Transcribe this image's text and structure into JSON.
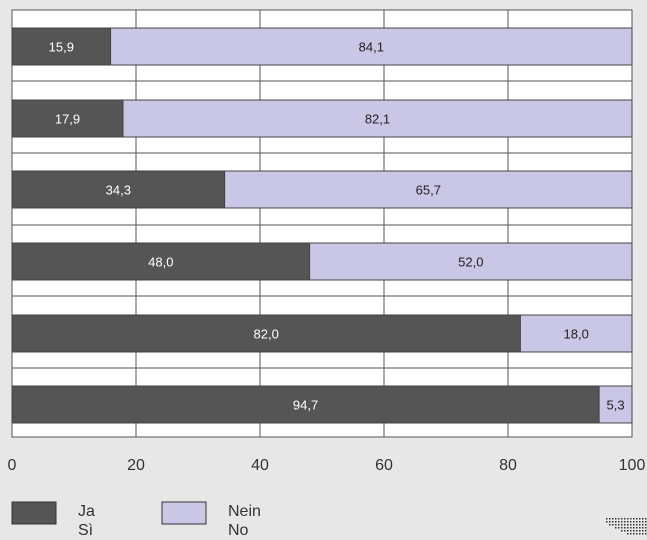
{
  "chart_data": {
    "type": "bar",
    "orientation": "horizontal",
    "stacked": true,
    "categories": [
      "",
      "",
      "",
      "",
      "",
      ""
    ],
    "series": [
      {
        "name": "Ja / Sì",
        "values": [
          15.9,
          17.9,
          34.3,
          48.0,
          82.0,
          94.7
        ],
        "labels": [
          "15,9",
          "17,9",
          "34,3",
          "48,0",
          "82,0",
          "94,7"
        ],
        "color": "#555555"
      },
      {
        "name": "Nein / No",
        "values": [
          84.1,
          82.1,
          65.7,
          52.0,
          18.0,
          5.3
        ],
        "labels": [
          "84,1",
          "82,1",
          "65,7",
          "52,0",
          "18,0",
          "5,3"
        ],
        "color": "#c9c6e6"
      }
    ],
    "xlim": [
      0,
      100
    ],
    "x_ticks": [
      "0",
      "20",
      "40",
      "60",
      "80",
      "100"
    ],
    "grid": true,
    "legend_position": "bottom-left",
    "legend": [
      {
        "line1": "Ja",
        "line2": "Sì",
        "color": "#555555"
      },
      {
        "line1": "Nein",
        "line2": "No",
        "color": "#c9c6e6"
      }
    ],
    "title": "",
    "xlabel": "",
    "ylabel": ""
  }
}
